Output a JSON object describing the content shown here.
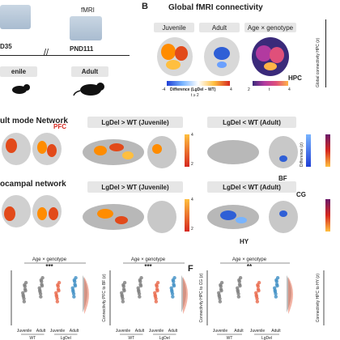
{
  "panel_b_letter": "B",
  "panel_f_letter": "F",
  "top_left": {
    "label_d35": "D35",
    "label_juvenile": "enile",
    "fmri": "fMRI",
    "label_pnd111": "PND111",
    "label_adult": "Adult"
  },
  "global": {
    "title": "Global fMRI connectivity",
    "col_juvenile": "Juvenile",
    "col_adult": "Adult",
    "col_interaction": "Age × genotype",
    "hpc": "HPC",
    "cbar1_label": "Difference (LgDel – WT)",
    "cbar1_min": "-4",
    "cbar1_max": "4",
    "cbar1_t": "t ≥ 2",
    "cbar2_min": "2",
    "cbar2_max": "4",
    "cbar2_t": "t",
    "side_label": "Global connectivity HPC (z)"
  },
  "row_dmn": {
    "title": "ult mode Network",
    "pfc": "PFC",
    "box1": "LgDel > WT (Juvenile)",
    "box2": "LgDel < WT (Adult)",
    "bf": "BF",
    "cbar_min": "2",
    "cbar_max": "4",
    "cbar_label": "Difference (z)"
  },
  "row_hpc": {
    "title": "ocampal network",
    "box1": "LgDel > WT (Juvenile)",
    "box2": "LgDel < WT (Adult)",
    "cg": "CG",
    "hy": "HY",
    "cbar_min": "2",
    "cbar_max": "4",
    "cbar_label": "Difference (z)"
  },
  "plots": {
    "p1": {
      "title": "Age × genotype",
      "sig": "***",
      "ylabel": "",
      "x_groups": [
        "Juvenile",
        "Adult",
        "Juvenile",
        "Adult"
      ],
      "genotypes": [
        "WT",
        "LgDel"
      ]
    },
    "p2": {
      "title": "Age × genotype",
      "sig": "***",
      "ylabel": "Connectivity PFC to BF (z)",
      "x_groups": [
        "Juvenile",
        "Adult",
        "Juvenile",
        "Adult"
      ],
      "genotypes": [
        "WT",
        "LgDel"
      ]
    },
    "p3": {
      "title": "Age × genotype",
      "sig": "**",
      "ylabel": "Connectivity HPC to CG (z)",
      "x_groups": [
        "Juvenile",
        "Adult",
        "Juvenile",
        "Adult"
      ],
      "genotypes": [
        "WT",
        "LgDel"
      ]
    },
    "p4": {
      "ylabel": "Connectivity HPC to HY (z)"
    }
  },
  "colors": {
    "wt": "#7d7d7d",
    "lgdel": "#e8684a",
    "lgdel_adult": "#3f8fc4",
    "hot": "#ff8c00",
    "cool": "#2f5fd6"
  }
}
